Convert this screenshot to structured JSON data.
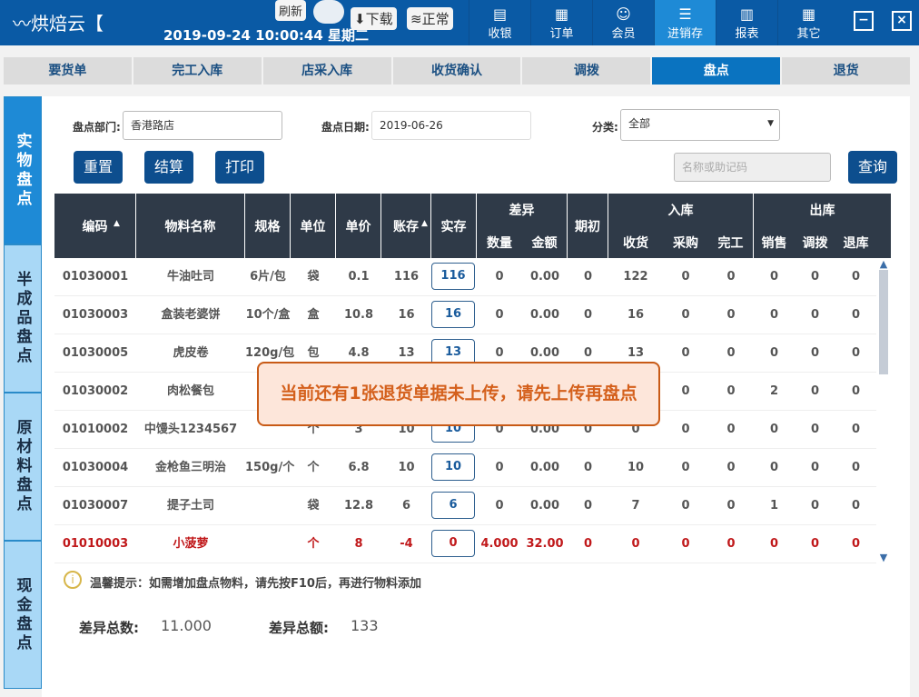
{
  "header": {
    "logo": "烘焙云【",
    "datetime": "2019-09-24 10:00:44 星期二",
    "refresh": "刷新",
    "download": "下载",
    "status": "正常",
    "nav": [
      {
        "label": "收银",
        "icon": "cashier-icon"
      },
      {
        "label": "订单",
        "icon": "order-icon"
      },
      {
        "label": "会员",
        "icon": "member-icon"
      },
      {
        "label": "进销存",
        "icon": "inventory-icon",
        "active": true
      },
      {
        "label": "报表",
        "icon": "chart-icon"
      },
      {
        "label": "其它",
        "icon": "grid-icon"
      }
    ]
  },
  "subtabs": [
    "要货单",
    "完工入库",
    "店采入库",
    "收货确认",
    "调拨",
    "盘点",
    "退货"
  ],
  "active_subtab": "盘点",
  "sidebar": [
    "实物盘点",
    "半成品盘点",
    "原材料盘点",
    "现金盘点"
  ],
  "filters": {
    "dept_label": "盘点部门:",
    "dept_value": "香港路店",
    "date_label": "盘点日期:",
    "date_value": "2019-06-26",
    "cat_label": "分类:",
    "cat_value": "全部",
    "search_placeholder": "名称或助记码"
  },
  "buttons": {
    "reset": "重置",
    "settle": "结算",
    "print": "打印",
    "query": "查询"
  },
  "table": {
    "headers": {
      "code": "编码",
      "name": "物料名称",
      "spec": "规格",
      "unit": "单位",
      "price": "单价",
      "book": "账存",
      "actual": "实存",
      "diff": "差异",
      "diff_qty": "数量",
      "diff_amt": "金额",
      "opening": "期初",
      "in": "入库",
      "in_recv": "收货",
      "in_buy": "采购",
      "in_done": "完工",
      "out": "出库",
      "out_sale": "销售",
      "out_transfer": "调拨",
      "out_return": "退库"
    },
    "rows": [
      [
        "01030001",
        "牛油吐司",
        "6片/包",
        "袋",
        "0.1",
        "116",
        "116",
        "0",
        "0.00",
        "0",
        "122",
        "0",
        "0",
        "0",
        "0",
        "0"
      ],
      [
        "01030003",
        "盒装老婆饼",
        "10个/盒",
        "盒",
        "10.8",
        "16",
        "16",
        "0",
        "0.00",
        "0",
        "16",
        "0",
        "0",
        "0",
        "0",
        "0"
      ],
      [
        "01030005",
        "虎皮卷",
        "120g/包",
        "包",
        "4.8",
        "13",
        "13",
        "0",
        "0.00",
        "0",
        "13",
        "0",
        "0",
        "0",
        "0",
        "0"
      ],
      [
        "01030002",
        "肉松餐包",
        "",
        "",
        "",
        "",
        "",
        "",
        "",
        "",
        "",
        "0",
        "0",
        "2",
        "0",
        "0"
      ],
      [
        "01010002",
        "中馒头1234567",
        "",
        "个",
        "3",
        "10",
        "10",
        "0",
        "0.00",
        "0",
        "0",
        "0",
        "0",
        "0",
        "0",
        "0"
      ],
      [
        "01030004",
        "金枪鱼三明治",
        "150g/个",
        "个",
        "6.8",
        "10",
        "10",
        "0",
        "0.00",
        "0",
        "10",
        "0",
        "0",
        "0",
        "0",
        "0"
      ],
      [
        "01030007",
        "提子土司",
        "",
        "袋",
        "12.8",
        "6",
        "6",
        "0",
        "0.00",
        "0",
        "7",
        "0",
        "0",
        "1",
        "0",
        "0"
      ],
      [
        "01010003",
        "小菠萝",
        "",
        "个",
        "8",
        "-4",
        "0",
        "4.000",
        "32.00",
        "0",
        "0",
        "0",
        "0",
        "0",
        "0",
        "0"
      ]
    ],
    "red_rows": [
      7
    ]
  },
  "tip": "温馨提示：如需增加盘点物料，请先按F10后，再进行物料添加",
  "summary": {
    "qty_label": "差异总数:",
    "qty_value": "11.000",
    "amt_label": "差异总额:",
    "amt_value": "133"
  },
  "toast": "当前还有1张退货单据未上传，请先上传再盘点",
  "colors": {
    "header": "#0a5aa5",
    "active": "#1e8ad6",
    "table_head": "#2f3a48",
    "error": "#c0181a",
    "toast_border": "#c85a16"
  }
}
